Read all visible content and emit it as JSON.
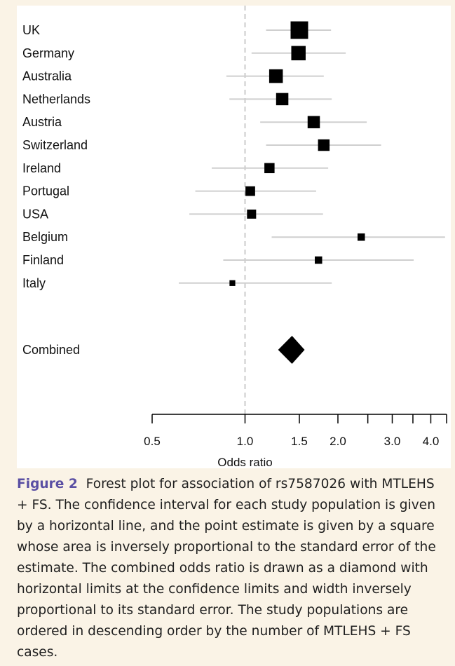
{
  "chart_data": {
    "type": "forest",
    "xlabel": "Odds ratio",
    "xscale": "log",
    "xlim": [
      0.5,
      4.5
    ],
    "reference_line": 1.0,
    "ticks": [
      {
        "value": 0.5,
        "label": "0.5"
      },
      {
        "value": 1.0,
        "label": "1.0"
      },
      {
        "value": 1.5,
        "label": "1.5"
      },
      {
        "value": 2.0,
        "label": "2.0"
      },
      {
        "value": 2.5,
        "label": ""
      },
      {
        "value": 3.0,
        "label": "3.0"
      },
      {
        "value": 3.5,
        "label": ""
      },
      {
        "value": 4.0,
        "label": "4.0"
      },
      {
        "value": 4.5,
        "label": ""
      }
    ],
    "studies": [
      {
        "name": "UK",
        "or": 1.5,
        "lo": 1.17,
        "hi": 1.9,
        "weight": 1.0
      },
      {
        "name": "Germany",
        "or": 1.49,
        "lo": 1.05,
        "hi": 2.12,
        "weight": 0.82
      },
      {
        "name": "Australia",
        "or": 1.26,
        "lo": 0.87,
        "hi": 1.8,
        "weight": 0.78
      },
      {
        "name": "Netherlands",
        "or": 1.32,
        "lo": 0.89,
        "hi": 1.91,
        "weight": 0.7
      },
      {
        "name": "Austria",
        "or": 1.67,
        "lo": 1.12,
        "hi": 2.48,
        "weight": 0.7
      },
      {
        "name": "Switzerland",
        "or": 1.8,
        "lo": 1.17,
        "hi": 2.76,
        "weight": 0.66
      },
      {
        "name": "Ireland",
        "or": 1.2,
        "lo": 0.78,
        "hi": 1.86,
        "weight": 0.58
      },
      {
        "name": "Portugal",
        "or": 1.04,
        "lo": 0.69,
        "hi": 1.7,
        "weight": 0.55
      },
      {
        "name": "USA",
        "or": 1.05,
        "lo": 0.66,
        "hi": 1.79,
        "weight": 0.52
      },
      {
        "name": "Belgium",
        "or": 2.38,
        "lo": 1.22,
        "hi": 4.45,
        "weight": 0.42
      },
      {
        "name": "Finland",
        "or": 1.73,
        "lo": 0.85,
        "hi": 3.52,
        "weight": 0.42
      },
      {
        "name": "Italy",
        "or": 0.91,
        "lo": 0.61,
        "hi": 1.91,
        "weight": 0.33
      }
    ],
    "combined": {
      "name": "Combined",
      "or": 1.42,
      "lo": 1.28,
      "hi": 1.56
    }
  },
  "caption": {
    "label": "Figure 2",
    "text": "Forest plot for association of rs7587026 with MTLEHS + FS. The confidence interval for each study population is given by a horizontal line, and the point estimate is given by a square whose area is inversely proportional to the standard error of the estimate. The combined odds ratio is drawn as a diamond with horizontal limits at the confidence limits and width inversely proportional to its standard error. The study populations are ordered in descending order by the number of MTLEHS + FS cases."
  }
}
